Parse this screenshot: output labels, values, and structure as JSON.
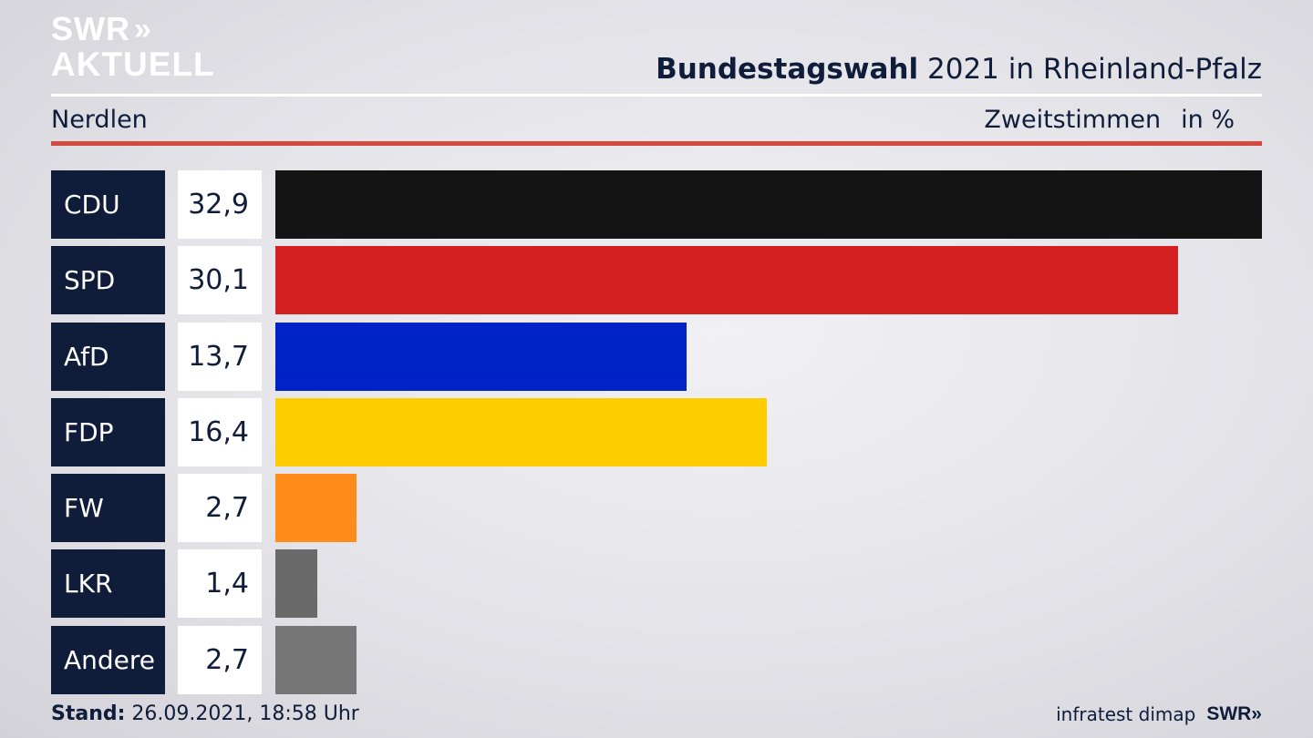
{
  "logo": {
    "line1": "SWR",
    "chevrons": "»",
    "line2": "AKTUELL"
  },
  "header": {
    "title_bold": "Bundestagswahl",
    "title_rest": "2021 in Rheinland-Pfalz",
    "location": "Nerdlen",
    "vote_type": "Zweitstimmen",
    "unit": "in %"
  },
  "footer": {
    "stand_label": "Stand:",
    "stand_value": "26.09.2021, 18:58 Uhr",
    "source": "infratest dimap",
    "brand": "SWR»"
  },
  "chart_data": {
    "type": "bar",
    "orientation": "horizontal",
    "categories": [
      "CDU",
      "SPD",
      "AfD",
      "FDP",
      "FW",
      "LKR",
      "Andere"
    ],
    "values": [
      32.9,
      30.1,
      13.7,
      16.4,
      2.7,
      1.4,
      2.7
    ],
    "value_labels": [
      "32,9",
      "30,1",
      "13,7",
      "16,4",
      "2,7",
      "1,4",
      "2,7"
    ],
    "colors": [
      "#141414",
      "#d42020",
      "#0023c8",
      "#ffcc00",
      "#ff8c1a",
      "#6a6a6a",
      "#767676"
    ],
    "xlim": [
      0,
      32.9
    ]
  }
}
